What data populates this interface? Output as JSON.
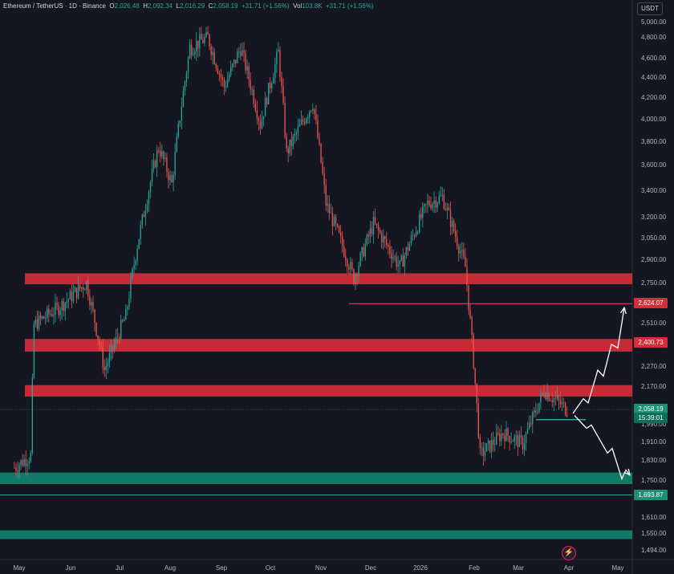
{
  "header": {
    "symbol": "Ethereum / TetherUS · 1D · Binance",
    "o_label": "O",
    "o_value": "2,026.48",
    "h_label": "H",
    "h_value": "2,092.34",
    "l_label": "L",
    "l_value": "2,016.29",
    "c_label": "C",
    "c_value": "2,058.19",
    "change": "+31.71 (+1.56%)",
    "vol_label": "Vol",
    "vol_value": "103.8K",
    "vol_change": "+31.71 (+1.56%)"
  },
  "currency": "USDT",
  "tags": {
    "t1": "2,624.07",
    "t2": "2,400.73",
    "price": "2,058.19",
    "countdown": "15:39:01",
    "t3": "1,693.87"
  },
  "colors": {
    "background": "#141722",
    "up": "#26a69a",
    "down": "#ef5350",
    "resistance_zone": "#d32f3a",
    "support_zone": "#12806a",
    "projection": "#ffffff"
  },
  "icons": [
    "lightning-replay-icon"
  ],
  "chart_data": {
    "type": "candlestick",
    "title": "Ethereum / TetherUS · 1D · Binance",
    "y_axis_ticks": [
      "5,000.00",
      "4,800.00",
      "4,600.00",
      "4,400.00",
      "4,200.00",
      "4,000.00",
      "3,800.00",
      "3,600.00",
      "3,400.00",
      "3,200.00",
      "3,050.00",
      "2,900.00",
      "2,750.00",
      "2,510.00",
      "2,270.00",
      "2,170.00",
      "1,990.00",
      "1,910.00",
      "1,830.00",
      "1,750.00",
      "1,610.00",
      "1,550.00",
      "1,494.00"
    ],
    "x_axis_ticks": [
      "May",
      "Jun",
      "Jul",
      "Aug",
      "Sep",
      "Oct",
      "Nov",
      "Dec",
      "2026",
      "Feb",
      "Mar",
      "Apr",
      "May"
    ],
    "ylim": [
      1494,
      5000
    ],
    "grid": false,
    "approx_close_path": [
      {
        "date": "2025-04-28",
        "price": 1800
      },
      {
        "date": "2025-05-08",
        "price": 1850
      },
      {
        "date": "2025-05-10",
        "price": 2500
      },
      {
        "date": "2025-05-25",
        "price": 2600
      },
      {
        "date": "2025-06-11",
        "price": 2750
      },
      {
        "date": "2025-06-22",
        "price": 2250
      },
      {
        "date": "2025-07-05",
        "price": 2550
      },
      {
        "date": "2025-07-12",
        "price": 3000
      },
      {
        "date": "2025-07-25",
        "price": 3750
      },
      {
        "date": "2025-08-02",
        "price": 3450
      },
      {
        "date": "2025-08-13",
        "price": 4700
      },
      {
        "date": "2025-08-24",
        "price": 4800
      },
      {
        "date": "2025-09-03",
        "price": 4300
      },
      {
        "date": "2025-09-13",
        "price": 4700
      },
      {
        "date": "2025-09-25",
        "price": 3950
      },
      {
        "date": "2025-10-06",
        "price": 4650
      },
      {
        "date": "2025-10-11",
        "price": 3700
      },
      {
        "date": "2025-10-27",
        "price": 4150
      },
      {
        "date": "2025-11-04",
        "price": 3300
      },
      {
        "date": "2025-11-21",
        "price": 2780
      },
      {
        "date": "2025-12-03",
        "price": 3150
      },
      {
        "date": "2025-12-19",
        "price": 2850
      },
      {
        "date": "2026-01-05",
        "price": 3300
      },
      {
        "date": "2026-01-14",
        "price": 3350
      },
      {
        "date": "2026-01-28",
        "price": 2850
      },
      {
        "date": "2026-02-06",
        "price": 1850
      },
      {
        "date": "2026-02-20",
        "price": 1950
      },
      {
        "date": "2026-03-04",
        "price": 1900
      },
      {
        "date": "2026-03-17",
        "price": 2150
      },
      {
        "date": "2026-03-31",
        "price": 2058.19
      }
    ],
    "resistance_zones": [
      [
        2740,
        2810
      ],
      [
        2350,
        2420
      ],
      [
        2120,
        2175
      ]
    ],
    "support_zones": [
      [
        1735,
        1780
      ],
      [
        1530,
        1560
      ]
    ],
    "horizontal_lines": [
      2624.07,
      1693.87
    ],
    "current_price": 2058.19
  }
}
